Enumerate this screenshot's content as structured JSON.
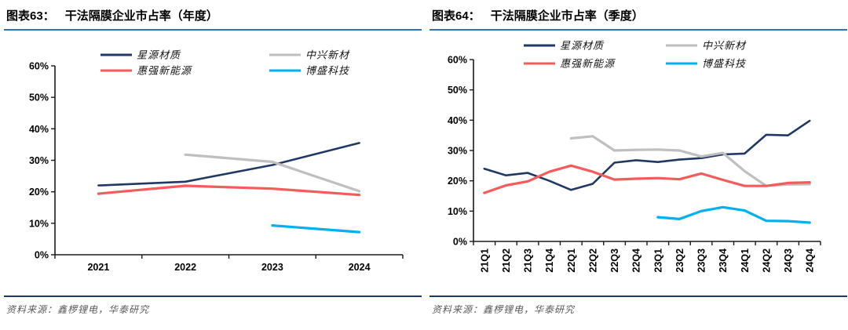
{
  "colors": {
    "navy": "#1F3864",
    "gray": "#BFBFBF",
    "red": "#F45C5C",
    "cyan": "#00B0F0",
    "title_underline": "#2E74B5",
    "source_rule": "#1F3864",
    "source_text": "#595959",
    "axis": "#1A1A1A"
  },
  "figures": [
    {
      "title_prefix": "图表63：",
      "title_text": "干法隔膜企业市占率（年度）",
      "source": "资料来源：鑫椤锂电，华泰研究"
    },
    {
      "title_prefix": "图表64：",
      "title_text": "干法隔膜企业市占率（季度）",
      "source": "资料来源：鑫椤锂电，华泰研究"
    }
  ],
  "chart_data": [
    {
      "type": "line",
      "title": "图表63： 干法隔膜企业市占率（年度）",
      "xlabel": "",
      "ylabel": "",
      "ylim": [
        0,
        60
      ],
      "ytick_step": 10,
      "ytick_labels": [
        "0%",
        "10%",
        "20%",
        "30%",
        "40%",
        "50%",
        "60%"
      ],
      "grid": false,
      "legend_position": "top",
      "categories": [
        "2021",
        "2022",
        "2023",
        "2024"
      ],
      "series": [
        {
          "name": "星源材质",
          "color": "#1F3864",
          "width": 2.6,
          "values": [
            22,
            23.2,
            28.5,
            35.5
          ]
        },
        {
          "name": "中兴新材",
          "color": "#BFBFBF",
          "width": 3.2,
          "values": [
            null,
            31.8,
            29.5,
            20.2
          ]
        },
        {
          "name": "惠强新能源",
          "color": "#F45C5C",
          "width": 3.2,
          "values": [
            19.4,
            21.9,
            21,
            19
          ]
        },
        {
          "name": "博盛科技",
          "color": "#00B0F0",
          "width": 3.2,
          "values": [
            null,
            null,
            9.3,
            7.2
          ]
        }
      ],
      "source": "资料来源：鑫椤锂电，华泰研究"
    },
    {
      "type": "line",
      "title": "图表64： 干法隔膜企业市占率（季度）",
      "xlabel": "",
      "ylabel": "",
      "ylim": [
        0,
        60
      ],
      "ytick_step": 10,
      "ytick_labels": [
        "0%",
        "10%",
        "20%",
        "30%",
        "40%",
        "50%",
        "60%"
      ],
      "grid": false,
      "legend_position": "top",
      "categories": [
        "21Q1",
        "21Q2",
        "21Q3",
        "21Q4",
        "22Q1",
        "22Q2",
        "22Q3",
        "22Q4",
        "23Q1",
        "23Q2",
        "23Q3",
        "23Q4",
        "24Q1",
        "24Q2",
        "24Q3",
        "24Q4"
      ],
      "series": [
        {
          "name": "星源材质",
          "color": "#1F3864",
          "width": 2.6,
          "values": [
            24,
            21.8,
            22.6,
            20,
            17,
            19,
            26,
            26.8,
            26.2,
            27,
            27.5,
            28.7,
            29,
            35.2,
            35,
            39.8
          ]
        },
        {
          "name": "中兴新材",
          "color": "#BFBFBF",
          "width": 3.2,
          "values": [
            null,
            null,
            null,
            null,
            34,
            34.7,
            30,
            30.2,
            30.3,
            30,
            28,
            29.2,
            23.2,
            18.3,
            18.8,
            18.9
          ]
        },
        {
          "name": "惠强新能源",
          "color": "#F45C5C",
          "width": 3.2,
          "values": [
            16,
            18.5,
            19.8,
            23,
            25,
            23,
            20.4,
            20.7,
            20.9,
            20.5,
            22.4,
            20.3,
            18.3,
            18.3,
            19.3,
            19.5
          ]
        },
        {
          "name": "博盛科技",
          "color": "#00B0F0",
          "width": 3.2,
          "values": [
            null,
            null,
            null,
            null,
            null,
            null,
            null,
            null,
            8,
            7.4,
            10,
            11.3,
            10.2,
            6.8,
            6.7,
            6.2
          ]
        }
      ],
      "source": "资料来源：鑫椤锂电，华泰研究"
    }
  ]
}
